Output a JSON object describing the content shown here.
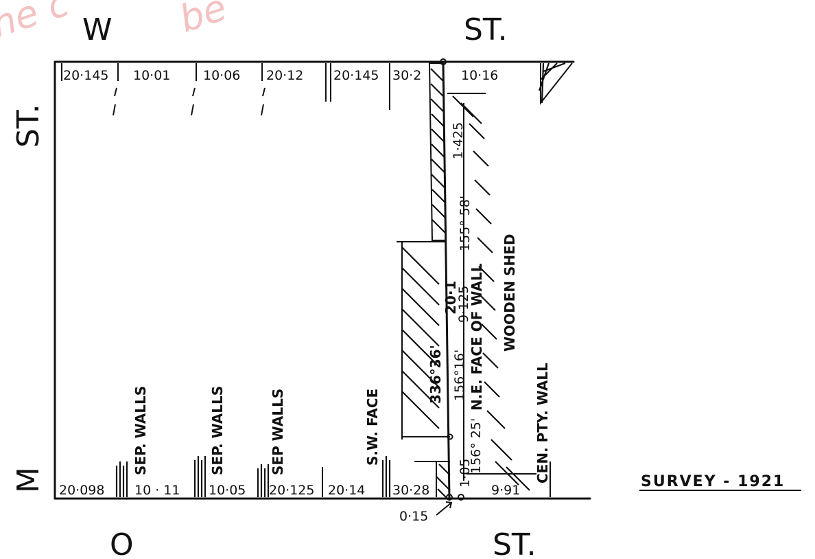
{
  "watermark": {
    "left": "ne c",
    "right": "be"
  },
  "street_labels": {
    "top_left": "W",
    "top_right": "ST.",
    "left_top": "ST.",
    "left_bottom": "M",
    "bottom_left": "O",
    "bottom_right": "ST."
  },
  "top_dimensions": [
    "20·145",
    "10·01",
    "10·06",
    "20·12",
    "20·145",
    "30·2",
    "10·16"
  ],
  "bottom_dimensions": [
    "20·098",
    "10 · 11",
    "10·05",
    "20·125",
    "20·14",
    "30·28",
    "9·91"
  ],
  "wall_labels": {
    "sep_walls_1": "SEP. WALLS",
    "sep_walls_2": "SEP. WALLS",
    "sep_walls_3": "SEP WALLS",
    "sw_face": "S.W. FACE",
    "cen_pty_wall": "CEN. PTY. WALL",
    "wooden_shed": "WOODEN SHED",
    "ne_face": "N.E. FACE OF WALL"
  },
  "bearings": {
    "main": "336°36'",
    "side": "156°16'",
    "length": "20·1",
    "upper_short": "1·425",
    "upper_angle": "155° 58'",
    "mid_short": "9·125",
    "lower_short": "1·05",
    "lower_angle": "156° 25'"
  },
  "offset_label": "0·15",
  "survey_label": "SURVEY - 1921"
}
